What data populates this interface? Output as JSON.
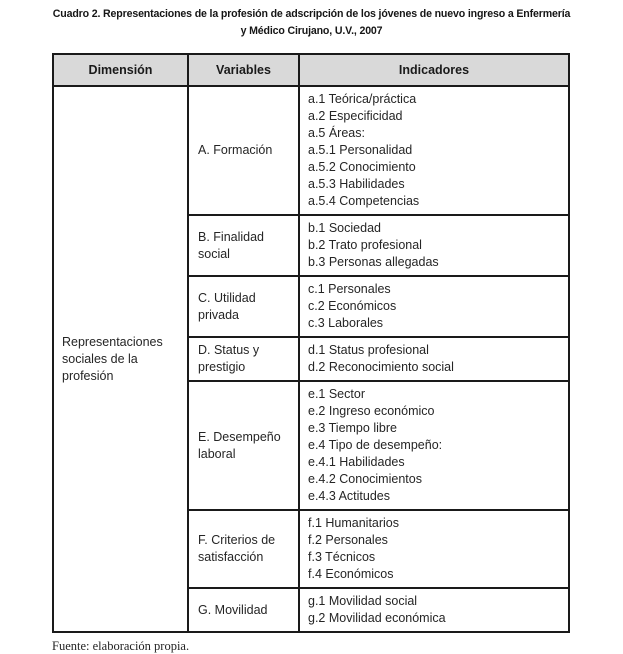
{
  "title": {
    "line1": "Cuadro 2. Representaciones de la profesión de adscripción de los jóvenes de nuevo ingreso a Enfermería",
    "line2": "y Médico Cirujano, U.V., 2007"
  },
  "table": {
    "headers": {
      "dimension": "Dimensión",
      "variables": "Variables",
      "indicadores": "Indicadores"
    },
    "dimension": "Representaciones sociales de la profesión",
    "rows": [
      {
        "variable": "A. Formación",
        "indicators": [
          "a.1 Teórica/práctica",
          "a.2 Especificidad",
          "a.5 Áreas:",
          "a.5.1 Personalidad",
          "a.5.2 Conocimiento",
          "a.5.3 Habilidades",
          "a.5.4 Competencias"
        ]
      },
      {
        "variable": "B. Finalidad social",
        "indicators": [
          "b.1 Sociedad",
          "b.2 Trato profesional",
          "b.3 Personas allegadas"
        ]
      },
      {
        "variable": "C. Utilidad privada",
        "indicators": [
          "c.1 Personales",
          "c.2 Económicos",
          "c.3 Laborales"
        ]
      },
      {
        "variable": "D. Status y prestigio",
        "indicators": [
          "d.1 Status profesional",
          "d.2 Reconocimiento social"
        ]
      },
      {
        "variable": "E. Desempeño laboral",
        "indicators": [
          "e.1 Sector",
          "e.2 Ingreso económico",
          "e.3 Tiempo libre",
          "e.4 Tipo de desempeño:",
          "e.4.1 Habilidades",
          "e.4.2 Conocimientos",
          "e.4.3 Actitudes"
        ]
      },
      {
        "variable": "F. Criterios de satisfacción",
        "indicators": [
          "f.1 Humanitarios",
          "f.2 Personales",
          "f.3 Técnicos",
          "f.4 Económicos"
        ]
      },
      {
        "variable": "G. Movilidad",
        "indicators": [
          "g.1 Movilidad social",
          "g.2 Movilidad económica"
        ]
      }
    ]
  },
  "footer": {
    "source": "Fuente: elaboración propia."
  },
  "colors": {
    "header_bg": "#d9d9d9",
    "border": "#1a1a1a",
    "text": "#252525"
  }
}
